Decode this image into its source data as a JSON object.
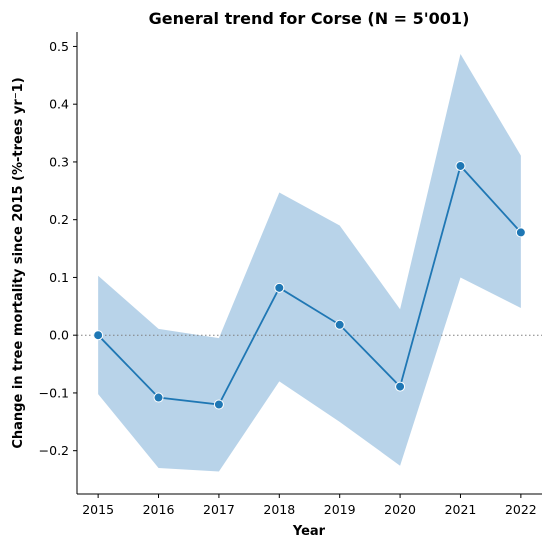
{
  "chart_data": {
    "type": "line",
    "title": "General trend for Corse  (N = 5'001)",
    "xlabel": "Year",
    "ylabel": "Change in tree mortality since 2015 (%-trees yr⁻1)",
    "x": [
      2015,
      2016,
      2017,
      2018,
      2019,
      2020,
      2021,
      2022
    ],
    "x_tick_labels": [
      "2015",
      "2016",
      "2017",
      "2018",
      "2019",
      "2020",
      "2021",
      "2022"
    ],
    "y_ticks": [
      -0.2,
      -0.1,
      0.0,
      0.1,
      0.2,
      0.3,
      0.4,
      0.5
    ],
    "y_tick_labels": [
      "−0.2",
      "−0.1",
      "0.0",
      "0.1",
      "0.2",
      "0.3",
      "0.4",
      "0.5"
    ],
    "xlim": [
      2014.65,
      2022.35
    ],
    "ylim": [
      -0.275,
      0.525
    ],
    "series": [
      {
        "values": [
          0.0,
          -0.108,
          -0.12,
          0.082,
          0.018,
          -0.089,
          0.293,
          0.178
        ],
        "ci_lower": [
          -0.102,
          -0.23,
          -0.236,
          -0.08,
          -0.15,
          -0.226,
          0.1,
          0.047
        ],
        "ci_upper": [
          0.103,
          0.011,
          -0.005,
          0.247,
          0.19,
          0.045,
          0.487,
          0.311
        ],
        "color": "#1f77b4",
        "band_color": "#a6c8e3"
      }
    ],
    "reference_line": {
      "y": 0.0,
      "style": "dotted",
      "color": "#808080"
    },
    "grid": false,
    "legend": false
  }
}
